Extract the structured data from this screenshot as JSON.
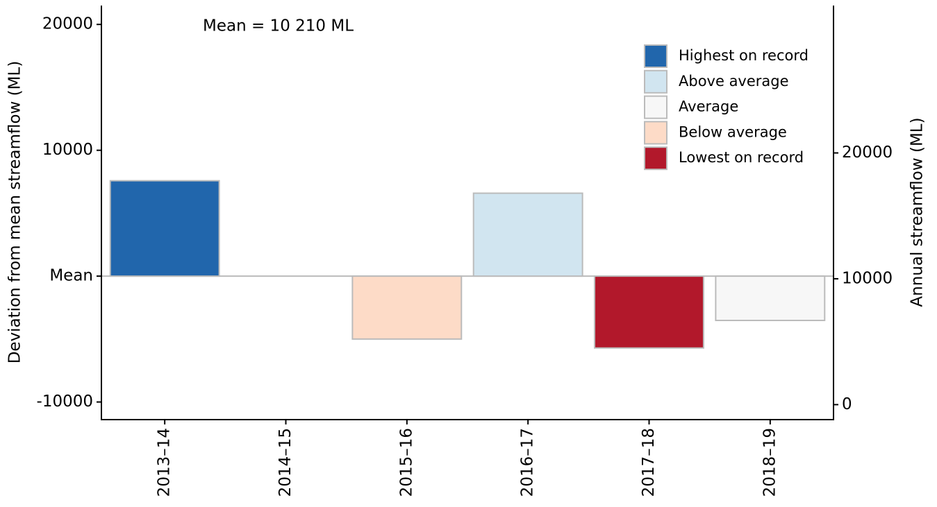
{
  "chart_data": {
    "type": "bar",
    "annotation": "Mean = 10 210 ML",
    "y_label": "Deviation from mean streamflow (ML)",
    "y2_label": "Annual streamflow (ML)",
    "categories": [
      "2013–14",
      "2014–15",
      "2015–16",
      "2016–17",
      "2017–18",
      "2018–19"
    ],
    "values": [
      7580,
      null,
      -5000,
      6590,
      -5710,
      -3520
    ],
    "colors": [
      "#2166ac",
      null,
      "#fddbc7",
      "#d1e5f0",
      "#b2182b",
      "#f7f7f7"
    ],
    "legend": [
      {
        "name": "Highest on record",
        "color": "#2166ac"
      },
      {
        "name": "Above average",
        "color": "#d1e5f0"
      },
      {
        "name": "Average",
        "color": "#f7f7f7"
      },
      {
        "name": "Below average",
        "color": "#fddbc7"
      },
      {
        "name": "Lowest on record",
        "color": "#b2182b"
      }
    ],
    "ylim": [
      -11400,
      21500
    ],
    "yticks": [
      -10000,
      {
        "value": 0,
        "label": "Mean"
      },
      10000,
      20000
    ],
    "y2lim": [
      -1190,
      31710
    ],
    "y2ticks": [
      0,
      10000,
      20000
    ]
  }
}
